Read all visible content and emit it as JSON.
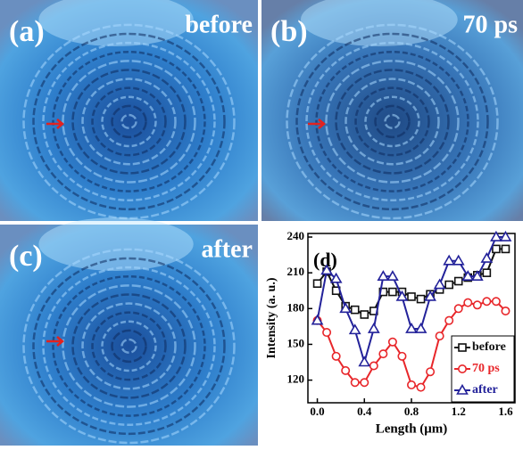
{
  "panels": [
    {
      "label": "(a)",
      "caption": "before"
    },
    {
      "label": "(b)",
      "caption": "70 ps"
    },
    {
      "label": "(c)",
      "caption": "after"
    }
  ],
  "chart_data": {
    "type": "line",
    "panel_label": "(d)",
    "x_label": "Length (μm)",
    "y_label": "Intensity (a. u.)",
    "x": [
      0,
      0.08,
      0.16,
      0.24,
      0.32,
      0.4,
      0.48,
      0.56,
      0.64,
      0.72,
      0.8,
      0.88,
      0.96,
      1.04,
      1.12,
      1.2,
      1.28,
      1.36,
      1.44,
      1.52,
      1.6
    ],
    "series": [
      {
        "name": "before",
        "color": "#111111",
        "marker": "square",
        "values": [
          201,
          211,
          195,
          182,
          179,
          175,
          178,
          194,
          194,
          194,
          190,
          188,
          192,
          196,
          200,
          203,
          206,
          208,
          210,
          230,
          230
        ]
      },
      {
        "name": "70 ps",
        "color": "#e8262a",
        "marker": "circle",
        "values": [
          170,
          160,
          140,
          128,
          118,
          118,
          132,
          142,
          152,
          140,
          116,
          114,
          127,
          157,
          170,
          180,
          185,
          183,
          186,
          186,
          178
        ]
      },
      {
        "name": "after",
        "color": "#23229a",
        "marker": "triangle",
        "values": [
          170,
          212,
          205,
          180,
          162,
          135,
          163,
          207,
          207,
          190,
          163,
          163,
          190,
          200,
          220,
          220,
          207,
          207,
          222,
          240,
          240
        ]
      }
    ],
    "xlim": [
      -0.08,
      1.68
    ],
    "ylim": [
      101,
      243
    ],
    "xticks": [
      {
        "value": 0,
        "label": "0.0"
      },
      0.4,
      0.8,
      1.2,
      1.6
    ],
    "yticks": [
      120,
      150,
      180,
      210,
      240
    ],
    "legend": "lower-right"
  }
}
